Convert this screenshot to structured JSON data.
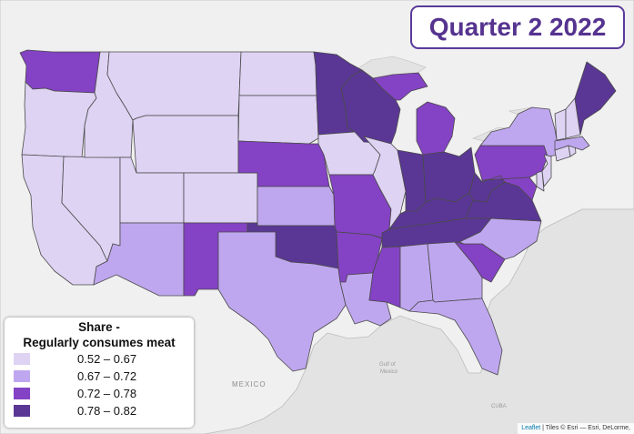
{
  "title": "Quarter 2 2022",
  "legend": {
    "title_line1": "Share -",
    "title_line2": "Regularly consumes meat",
    "classes": [
      {
        "label": "0.52 – 0.67",
        "color": "#ded3f3"
      },
      {
        "label": "0.67 – 0.72",
        "color": "#bfa7ef"
      },
      {
        "label": "0.72 – 0.78",
        "color": "#8442c4"
      },
      {
        "label": "0.78 – 0.82",
        "color": "#5a3795"
      }
    ]
  },
  "basemap": {
    "colors": {
      "land": "#f0f0f0",
      "water": "#e3e3e3",
      "border": "#bcbcbc"
    },
    "labels": {
      "mexico": "MEXICO",
      "gulf_line1": "Gulf of",
      "gulf_line2": "Mexico",
      "cuba": "CUBA"
    }
  },
  "attribution": {
    "leaflet": "Leaflet",
    "separator": " | Tiles © Esri — Esri, DeLorme,"
  },
  "states": {
    "WA": 3,
    "OR": 1,
    "CA": 1,
    "NV": 1,
    "ID": 1,
    "UT": 1,
    "AZ": 2,
    "MT": 1,
    "WY": 1,
    "CO": 1,
    "NM": 3,
    "ND": 1,
    "SD": 1,
    "NE": 3,
    "KS": 2,
    "OK": 4,
    "TX": 2,
    "MN": 4,
    "IA": 1,
    "MO": 3,
    "AR": 3,
    "LA": 2,
    "WI": 4,
    "IL": 1,
    "MS": 3,
    "MI": 3,
    "IN": 4,
    "KY": 4,
    "TN": 4,
    "AL": 2,
    "OH": 4,
    "WV": 4,
    "VA": 4,
    "NC": 2,
    "SC": 3,
    "GA": 2,
    "FL": 2,
    "PA": 3,
    "NY": 2,
    "ME": 4,
    "VT": 1,
    "NH": 1,
    "MA": 2,
    "CT": 1,
    "RI": 1,
    "NJ": 1,
    "DE": 1,
    "MD": 3
  }
}
